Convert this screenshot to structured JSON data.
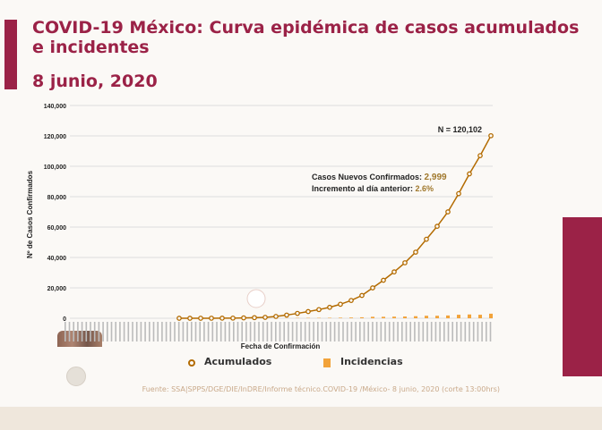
{
  "slide": {
    "title": "COVID-19 México: Curva epidémica de casos acumulados e incidentes",
    "date": "8 junio, 2020",
    "source": "Fuente: SSA|SPPS/DGE/DIE/InDRE/Informe técnico.COVID-19 /México- 8 junio, 2020 (corte 13:00hrs)"
  },
  "colors": {
    "brand": "#9b2247",
    "acumulados": "#b36b00",
    "incidencias": "#f2a33a",
    "highlight": "#a0782c"
  },
  "chart_data": {
    "type": "line",
    "xlabel": "Fecha de Confirmación",
    "ylabel": "Nº de Casos Confirmados",
    "ylim": [
      0,
      140000
    ],
    "yticks": [
      "0",
      "20,000",
      "40,000",
      "60,000",
      "80,000",
      "100,000",
      "120,000",
      "140,000"
    ],
    "grid": true,
    "legend_position": "bottom",
    "series": [
      {
        "name": "Acumulados",
        "type": "line-markers",
        "values": [
          0,
          5,
          10,
          30,
          60,
          100,
          250,
          400,
          600,
          1200,
          2100,
          3200,
          4400,
          5700,
          7200,
          9200,
          11700,
          15000,
          20000,
          25000,
          30500,
          36500,
          43500,
          52000,
          60500,
          70000,
          82000,
          95000,
          107000,
          120102
        ]
      },
      {
        "name": "Incidencias",
        "type": "bar",
        "values": [
          0,
          0,
          0,
          0,
          0,
          10,
          30,
          30,
          40,
          110,
          170,
          210,
          230,
          250,
          290,
          380,
          480,
          630,
          960,
          960,
          1060,
          1150,
          1350,
          1630,
          1630,
          1830,
          2300,
          2500,
          2300,
          2999
        ]
      }
    ],
    "annotations": {
      "total": "N = 120,102",
      "new_cases_label": "Casos Nuevos Confirmados:",
      "new_cases_value": "2,999",
      "increment_label": "Incremento al día anterior:",
      "increment_value": "2.6%"
    }
  }
}
